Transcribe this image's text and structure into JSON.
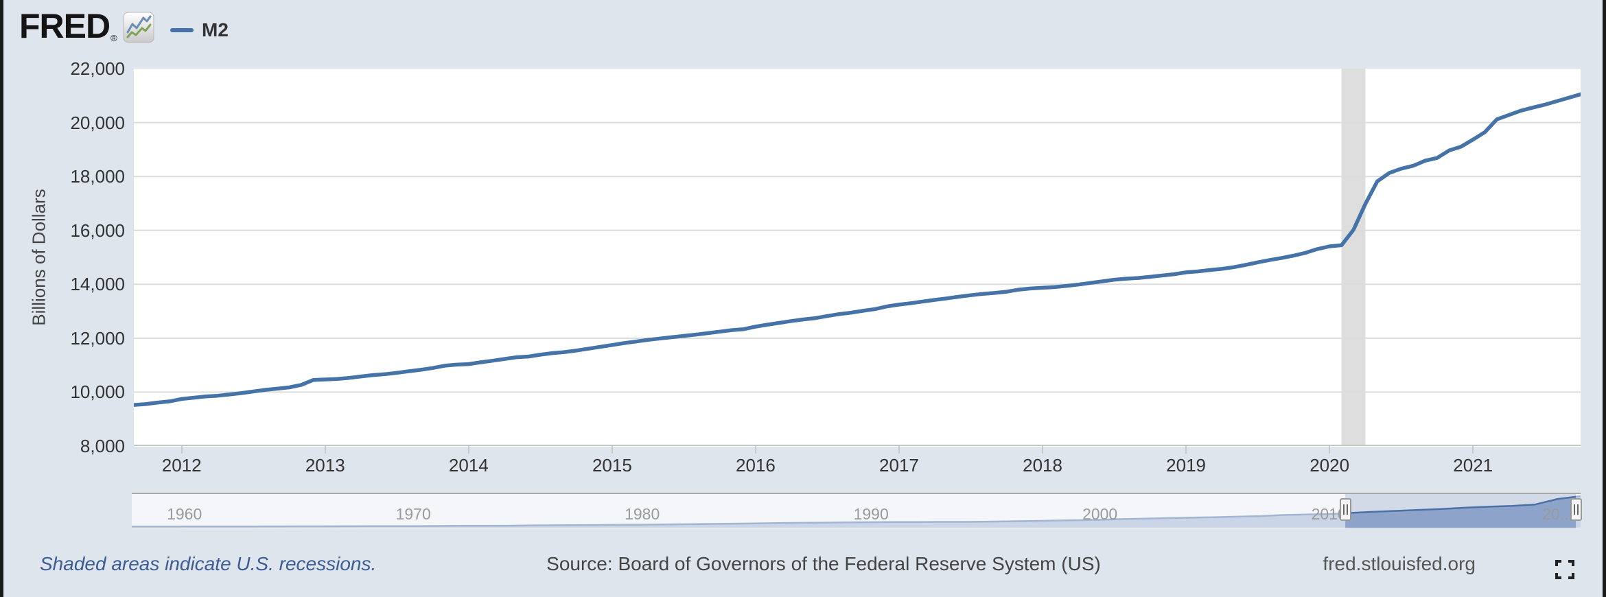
{
  "header": {
    "logo_text": "FRED",
    "registered_mark": "®",
    "legend": {
      "series_label": "M2",
      "series_color": "#4572a7"
    }
  },
  "y_axis": {
    "title": "Billions of Dollars",
    "tick_labels": [
      "22,000",
      "20,000",
      "18,000",
      "16,000",
      "14,000",
      "12,000",
      "10,000",
      "8,000"
    ],
    "tick_values": [
      22000,
      20000,
      18000,
      16000,
      14000,
      12000,
      10000,
      8000
    ]
  },
  "x_axis": {
    "tick_years": [
      "2012",
      "2013",
      "2014",
      "2015",
      "2016",
      "2017",
      "2018",
      "2019",
      "2020",
      "2021"
    ]
  },
  "footer": {
    "recession_note": "Shaded areas indicate U.S. recessions.",
    "source": "Source: Board of Governors of the Federal Reserve System (US)",
    "website": "fred.stlouisfed.org"
  },
  "chart_data": {
    "type": "line",
    "series_name": "M2",
    "units": "Billions of Dollars",
    "frequency": "monthly",
    "start": "2011-09",
    "end": "2021-10",
    "ylim": [
      8000,
      22000
    ],
    "gridline_values": [
      10000,
      12000,
      14000,
      16000,
      18000,
      20000
    ],
    "values": [
      9526,
      9554,
      9613,
      9658,
      9745,
      9793,
      9840,
      9866,
      9911,
      9963,
      10023,
      10086,
      10128,
      10176,
      10267,
      10450,
      10468,
      10486,
      10527,
      10580,
      10633,
      10666,
      10717,
      10774,
      10828,
      10895,
      10982,
      11020,
      11039,
      11106,
      11163,
      11230,
      11294,
      11319,
      11388,
      11446,
      11484,
      11542,
      11609,
      11677,
      11748,
      11817,
      11876,
      11937,
      11989,
      12038,
      12086,
      12133,
      12187,
      12243,
      12298,
      12334,
      12430,
      12504,
      12570,
      12639,
      12696,
      12746,
      12822,
      12896,
      12949,
      13017,
      13081,
      13180,
      13247,
      13299,
      13360,
      13422,
      13478,
      13540,
      13596,
      13644,
      13680,
      13726,
      13802,
      13845,
      13870,
      13896,
      13940,
      13990,
      14050,
      14109,
      14170,
      14208,
      14234,
      14276,
      14325,
      14374,
      14442,
      14478,
      14528,
      14572,
      14637,
      14719,
      14813,
      14901,
      14977,
      15064,
      15169,
      15307,
      15408,
      15447,
      16019,
      16981,
      17821,
      18131,
      18289,
      18395,
      18584,
      18687,
      18963,
      19107,
      19369,
      19646,
      20120,
      20280,
      20439,
      20554,
      20660,
      20792,
      20918,
      21047
    ],
    "recession_bands": [
      {
        "start": "2020-02",
        "end": "2020-04"
      }
    ],
    "navigator": {
      "type": "area",
      "start_year": 1959,
      "end_year": 2021,
      "values": [
        298,
        312,
        336,
        363,
        393,
        425,
        459,
        480,
        525,
        567,
        588,
        627,
        710,
        802,
        856,
        902,
        1016,
        1152,
        1271,
        1366,
        1474,
        1600,
        1756,
        1911,
        2128,
        2313,
        2497,
        2734,
        2833,
        2996,
        3159,
        3279,
        3379,
        3434,
        3487,
        3502,
        3649,
        3824,
        4046,
        4401,
        4643,
        4921,
        5430,
        5774,
        6062,
        6411,
        6669,
        7058,
        7457,
        8181,
        8489,
        8795,
        9653,
        10450,
        11020,
        11677,
        12334,
        13180,
        13845,
        14374,
        15307,
        19107,
        21047
      ],
      "decade_labels": [
        "1960",
        "1970",
        "1980",
        "1990",
        "2000",
        "2010",
        "20..."
      ],
      "decade_years": [
        1960,
        1970,
        1980,
        1990,
        2000,
        2010,
        2020
      ],
      "left_handle_position": 0.8376,
      "right_handle_position": 0.9967
    },
    "colors": {
      "line": "#4572a7",
      "recession_band": "#dedede",
      "gridline": "#dcdcdc",
      "axis_line": "#c4c4c4",
      "navigator_fill": "#9db0d2",
      "navigator_line": "#4c72a8",
      "navigator_bg": "#f1f3f6",
      "selection_tint": "rgba(73,107,166,0.18)"
    }
  }
}
